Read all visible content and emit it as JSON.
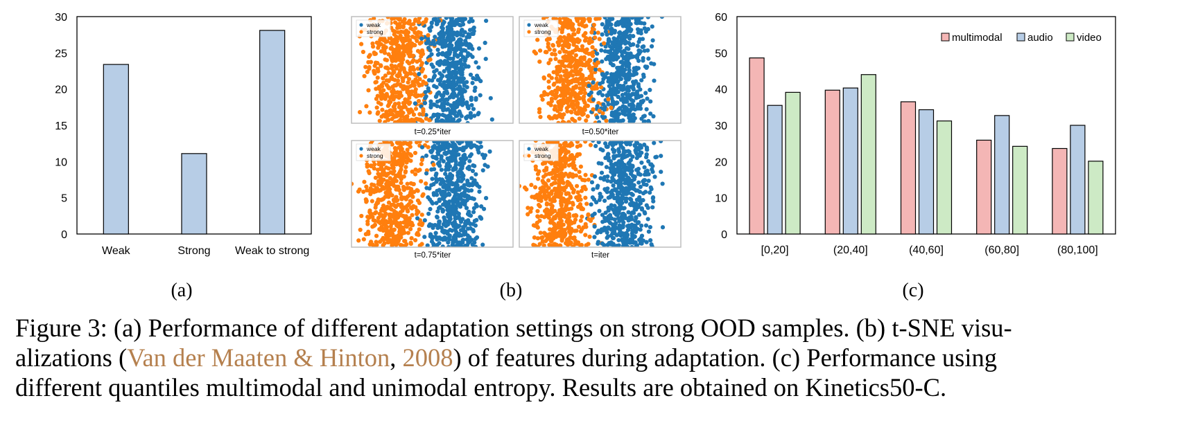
{
  "chart_data": [
    {
      "id": "a",
      "type": "bar",
      "subfigure_label": "(a)",
      "categories": [
        "Weak",
        "Strong",
        "Weak to strong"
      ],
      "values": [
        23.4,
        11.1,
        28.1
      ],
      "ylim": [
        0,
        30
      ],
      "yticks": [
        "0",
        "5",
        "10",
        "15",
        "20",
        "25",
        "30"
      ],
      "bar_color": "#b7cde6",
      "grid": false
    },
    {
      "id": "b",
      "type": "scatter",
      "subfigure_label": "(b)",
      "panels": [
        {
          "title": "t=0.25*iter",
          "weak_center": 0.62,
          "strong_center": 0.3
        },
        {
          "title": "t=0.50*iter",
          "weak_center": 0.64,
          "strong_center": 0.33
        },
        {
          "title": "t=0.75*iter",
          "weak_center": 0.64,
          "strong_center": 0.26
        },
        {
          "title": "t=iter",
          "weak_center": 0.66,
          "strong_center": 0.25
        }
      ],
      "legend": [
        {
          "label": "weak",
          "color": "#1f77b4"
        },
        {
          "label": "strong",
          "color": "#ff7f0e"
        }
      ]
    },
    {
      "id": "c",
      "type": "bar",
      "subfigure_label": "(c)",
      "categories": [
        "[0,20]",
        "(20,40]",
        "(40,60]",
        "(60,80]",
        "(80,100]"
      ],
      "series": [
        {
          "name": "multimodal",
          "color": "#f4b6b5",
          "values": [
            48.6,
            39.7,
            36.5,
            25.9,
            23.6
          ]
        },
        {
          "name": "audio",
          "color": "#b7cde6",
          "values": [
            35.5,
            40.3,
            34.3,
            32.7,
            30.0
          ]
        },
        {
          "name": "video",
          "color": "#cdeac5",
          "values": [
            39.1,
            44.0,
            31.2,
            24.2,
            20.1
          ]
        }
      ],
      "ylim": [
        0,
        60
      ],
      "yticks": [
        "0",
        "10",
        "20",
        "30",
        "40",
        "50",
        "60"
      ],
      "legend_position": "top-right",
      "grid": false
    }
  ],
  "caption": {
    "line1_a": "Figure 3: (a) Performance of different adaptation settings on strong OOD samples. (b) t-SNE visu-",
    "line2_a": "alizations (",
    "line2_cite1": "Van der Maaten & Hinton",
    "line2_b": ", ",
    "line2_cite2": "2008",
    "line2_c": ") of features during adaptation. (c) Performance using",
    "line3": "different quantiles multimodal and unimodal entropy. Results are obtained on Kinetics50-C."
  }
}
